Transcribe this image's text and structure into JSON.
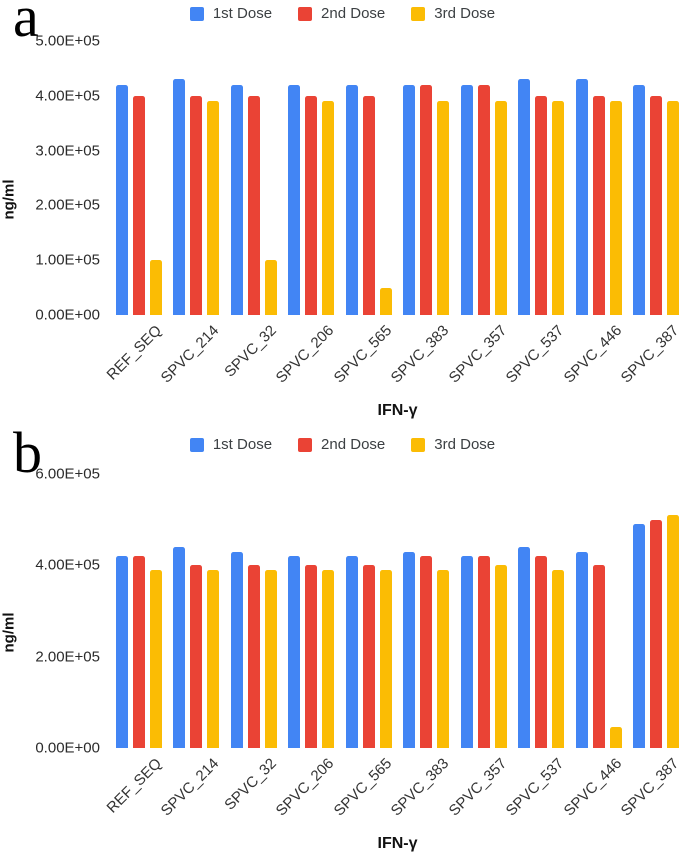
{
  "figure": {
    "background": "#ffffff",
    "colors": {
      "dose1": "#4285F4",
      "dose2": "#EA4335",
      "dose3": "#FBBC04"
    }
  },
  "chart_data": [
    {
      "panel_label": "a",
      "type": "bar",
      "title": "",
      "xlabel": "IFN-γ",
      "ylabel": "ng/ml",
      "ylim": [
        0,
        500000
      ],
      "yticks": [
        "0.00E+00",
        "1.00E+05",
        "2.00E+05",
        "3.00E+05",
        "4.00E+05",
        "5.00E+05"
      ],
      "grid": false,
      "legend_position": "top",
      "categories": [
        "REF_SEQ",
        "SPVC_214",
        "SPVC_32",
        "SPVC_206",
        "SPVC_565",
        "SPVC_383",
        "SPVC_357",
        "SPVC_537",
        "SPVC_446",
        "SPVC_387"
      ],
      "series": [
        {
          "name": "1st Dose",
          "color": "#4285F4",
          "values": [
            420000,
            430000,
            420000,
            420000,
            420000,
            420000,
            420000,
            430000,
            430000,
            420000
          ]
        },
        {
          "name": "2nd Dose",
          "color": "#EA4335",
          "values": [
            400000,
            400000,
            400000,
            400000,
            400000,
            420000,
            420000,
            400000,
            400000,
            400000
          ]
        },
        {
          "name": "3rd Dose",
          "color": "#FBBC04",
          "values": [
            100000,
            390000,
            100000,
            390000,
            50000,
            390000,
            390000,
            390000,
            390000,
            390000
          ]
        }
      ]
    },
    {
      "panel_label": "b",
      "type": "bar",
      "title": "",
      "xlabel": "IFN-γ",
      "ylabel": "ng/ml",
      "ylim": [
        0,
        600000
      ],
      "yticks": [
        "0.00E+00",
        "2.00E+05",
        "4.00E+05",
        "6.00E+05"
      ],
      "grid": false,
      "legend_position": "top",
      "categories": [
        "REF_SEQ",
        "SPVC_214",
        "SPVC_32",
        "SPVC_206",
        "SPVC_565",
        "SPVC_383",
        "SPVC_357",
        "SPVC_537",
        "SPVC_446",
        "SPVC_387"
      ],
      "series": [
        {
          "name": "1st Dose",
          "color": "#4285F4",
          "values": [
            420000,
            440000,
            430000,
            420000,
            420000,
            430000,
            420000,
            440000,
            430000,
            490000
          ]
        },
        {
          "name": "2nd Dose",
          "color": "#EA4335",
          "values": [
            420000,
            400000,
            400000,
            400000,
            400000,
            420000,
            420000,
            420000,
            400000,
            500000
          ]
        },
        {
          "name": "3rd Dose",
          "color": "#FBBC04",
          "values": [
            390000,
            390000,
            390000,
            390000,
            390000,
            390000,
            400000,
            390000,
            45000,
            510000
          ]
        }
      ]
    }
  ]
}
